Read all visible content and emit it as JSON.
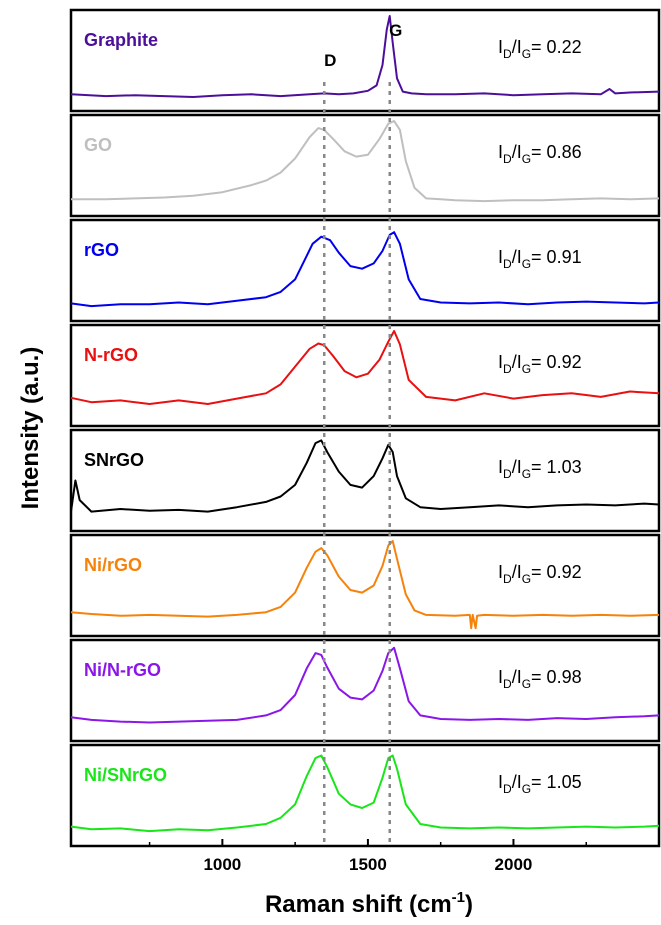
{
  "chart_data": {
    "type": "line",
    "stacked_panels": true,
    "xlabel": "Raman shift (cm",
    "xlabel_superscript": "-1",
    "xlabel_suffix": ")",
    "ylabel": "Intensity (a.u.)",
    "xlim": [
      480,
      2500
    ],
    "x_ticks": [
      1000,
      1500,
      2000
    ],
    "x_tick_labels": [
      "1000",
      "1500",
      "2000"
    ],
    "grid": false,
    "guide_lines": [
      {
        "label": "D",
        "x": 1350
      },
      {
        "label": "G",
        "x": 1575
      }
    ],
    "ratio_label": {
      "prefix": "I",
      "num_sub": "D",
      "slash": "/I",
      "den_sub": "G",
      "eq": "= "
    },
    "series": [
      {
        "name": "Graphite",
        "color": "#4b0f9a",
        "ratio": "0.22",
        "x": [
          480,
          600,
          700,
          800,
          900,
          1000,
          1100,
          1200,
          1300,
          1350,
          1400,
          1450,
          1500,
          1530,
          1550,
          1565,
          1575,
          1585,
          1600,
          1620,
          1650,
          1700,
          1800,
          1900,
          2000,
          2100,
          2200,
          2300,
          2330,
          2350,
          2400,
          2500
        ],
        "y": [
          0.12,
          0.1,
          0.11,
          0.1,
          0.09,
          0.11,
          0.12,
          0.1,
          0.12,
          0.13,
          0.12,
          0.13,
          0.16,
          0.22,
          0.45,
          0.85,
          1.0,
          0.7,
          0.3,
          0.15,
          0.13,
          0.12,
          0.12,
          0.13,
          0.11,
          0.12,
          0.13,
          0.12,
          0.18,
          0.13,
          0.14,
          0.15
        ]
      },
      {
        "name": "GO",
        "color": "#bfbfbf",
        "ratio": "0.86",
        "x": [
          480,
          600,
          700,
          800,
          900,
          1000,
          1100,
          1150,
          1200,
          1250,
          1300,
          1330,
          1350,
          1380,
          1420,
          1460,
          1500,
          1540,
          1570,
          1590,
          1610,
          1630,
          1660,
          1700,
          1750,
          1800,
          1900,
          2000,
          2100,
          2200,
          2300,
          2400,
          2500
        ],
        "y": [
          0.12,
          0.12,
          0.13,
          0.14,
          0.16,
          0.2,
          0.28,
          0.33,
          0.42,
          0.58,
          0.82,
          0.92,
          0.9,
          0.8,
          0.66,
          0.6,
          0.62,
          0.8,
          0.97,
          1.0,
          0.9,
          0.55,
          0.25,
          0.13,
          0.12,
          0.11,
          0.1,
          0.11,
          0.11,
          0.12,
          0.13,
          0.12,
          0.13
        ]
      },
      {
        "name": "rGO",
        "color": "#0000ee",
        "ratio": "0.91",
        "x": [
          480,
          550,
          650,
          750,
          850,
          950,
          1050,
          1150,
          1200,
          1250,
          1280,
          1310,
          1340,
          1370,
          1400,
          1440,
          1480,
          1520,
          1550,
          1575,
          1590,
          1610,
          1640,
          1680,
          1750,
          1850,
          1950,
          2050,
          2150,
          2250,
          2350,
          2450,
          2500
        ],
        "y": [
          0.13,
          0.1,
          0.12,
          0.12,
          0.14,
          0.12,
          0.16,
          0.2,
          0.26,
          0.4,
          0.6,
          0.8,
          0.88,
          0.84,
          0.7,
          0.55,
          0.52,
          0.58,
          0.72,
          0.9,
          0.93,
          0.8,
          0.4,
          0.18,
          0.14,
          0.13,
          0.14,
          0.12,
          0.14,
          0.15,
          0.14,
          0.13,
          0.14
        ]
      },
      {
        "name": "N-rGO",
        "color": "#e81010",
        "ratio": "0.92",
        "x": [
          480,
          550,
          650,
          750,
          850,
          950,
          1050,
          1150,
          1200,
          1250,
          1300,
          1330,
          1350,
          1380,
          1420,
          1460,
          1500,
          1540,
          1570,
          1590,
          1610,
          1640,
          1700,
          1800,
          1900,
          2000,
          2100,
          2200,
          2300,
          2400,
          2500
        ],
        "y": [
          0.25,
          0.2,
          0.22,
          0.18,
          0.22,
          0.18,
          0.24,
          0.3,
          0.4,
          0.6,
          0.8,
          0.86,
          0.84,
          0.72,
          0.55,
          0.48,
          0.52,
          0.68,
          0.88,
          1.0,
          0.85,
          0.45,
          0.26,
          0.22,
          0.3,
          0.24,
          0.28,
          0.3,
          0.26,
          0.32,
          0.3
        ]
      },
      {
        "name": "SNrGO",
        "color": "#000000",
        "ratio": "1.03",
        "x": [
          480,
          495,
          510,
          550,
          650,
          750,
          850,
          950,
          1050,
          1150,
          1200,
          1250,
          1290,
          1320,
          1340,
          1360,
          1400,
          1440,
          1480,
          1520,
          1550,
          1570,
          1585,
          1600,
          1630,
          1680,
          1750,
          1850,
          1950,
          2050,
          2150,
          2250,
          2350,
          2450,
          2500
        ],
        "y": [
          0.15,
          0.5,
          0.28,
          0.15,
          0.18,
          0.16,
          0.17,
          0.15,
          0.2,
          0.26,
          0.32,
          0.45,
          0.7,
          0.92,
          0.95,
          0.82,
          0.6,
          0.45,
          0.42,
          0.55,
          0.75,
          0.9,
          0.82,
          0.55,
          0.3,
          0.2,
          0.18,
          0.2,
          0.22,
          0.2,
          0.22,
          0.23,
          0.22,
          0.24,
          0.23
        ]
      },
      {
        "name": "Ni/rGO",
        "color": "#f5820a",
        "ratio": "0.92",
        "x": [
          480,
          550,
          650,
          750,
          850,
          950,
          1050,
          1150,
          1200,
          1250,
          1290,
          1320,
          1340,
          1360,
          1400,
          1440,
          1480,
          1520,
          1550,
          1570,
          1585,
          1600,
          1630,
          1660,
          1700,
          1800,
          1850,
          1855,
          1860,
          1870,
          1875,
          1900,
          2000,
          2100,
          2200,
          2300,
          2400,
          2500
        ],
        "y": [
          0.2,
          0.18,
          0.16,
          0.17,
          0.16,
          0.15,
          0.17,
          0.2,
          0.26,
          0.42,
          0.7,
          0.88,
          0.92,
          0.84,
          0.6,
          0.45,
          0.42,
          0.5,
          0.72,
          0.95,
          1.0,
          0.8,
          0.4,
          0.22,
          0.17,
          0.16,
          0.17,
          0.02,
          0.17,
          0.02,
          0.16,
          0.17,
          0.16,
          0.17,
          0.16,
          0.17,
          0.16,
          0.17
        ]
      },
      {
        "name": "Ni/N-rGO",
        "color": "#8a17e8",
        "ratio": "0.98",
        "x": [
          480,
          550,
          650,
          750,
          850,
          950,
          1050,
          1150,
          1200,
          1250,
          1290,
          1320,
          1340,
          1360,
          1400,
          1440,
          1480,
          1520,
          1550,
          1570,
          1590,
          1610,
          1640,
          1680,
          1750,
          1850,
          1950,
          2050,
          2150,
          2250,
          2350,
          2450,
          2500
        ],
        "y": [
          0.2,
          0.17,
          0.15,
          0.14,
          0.15,
          0.16,
          0.17,
          0.22,
          0.28,
          0.45,
          0.75,
          0.92,
          0.9,
          0.76,
          0.52,
          0.42,
          0.4,
          0.5,
          0.72,
          0.92,
          0.98,
          0.75,
          0.38,
          0.22,
          0.18,
          0.17,
          0.18,
          0.17,
          0.19,
          0.18,
          0.2,
          0.21,
          0.22
        ]
      },
      {
        "name": "Ni/SNrGO",
        "color": "#19e619",
        "ratio": "1.05",
        "x": [
          480,
          550,
          650,
          750,
          850,
          950,
          1050,
          1150,
          1200,
          1250,
          1290,
          1320,
          1340,
          1360,
          1400,
          1440,
          1480,
          1520,
          1550,
          1570,
          1585,
          1600,
          1630,
          1680,
          1750,
          1850,
          1950,
          2050,
          2150,
          2250,
          2350,
          2450,
          2500
        ],
        "y": [
          0.15,
          0.12,
          0.13,
          0.1,
          0.12,
          0.11,
          0.14,
          0.18,
          0.25,
          0.4,
          0.72,
          0.92,
          0.95,
          0.82,
          0.52,
          0.4,
          0.36,
          0.42,
          0.7,
          0.92,
          0.95,
          0.8,
          0.4,
          0.18,
          0.14,
          0.13,
          0.14,
          0.13,
          0.14,
          0.15,
          0.14,
          0.15,
          0.16
        ]
      }
    ]
  }
}
